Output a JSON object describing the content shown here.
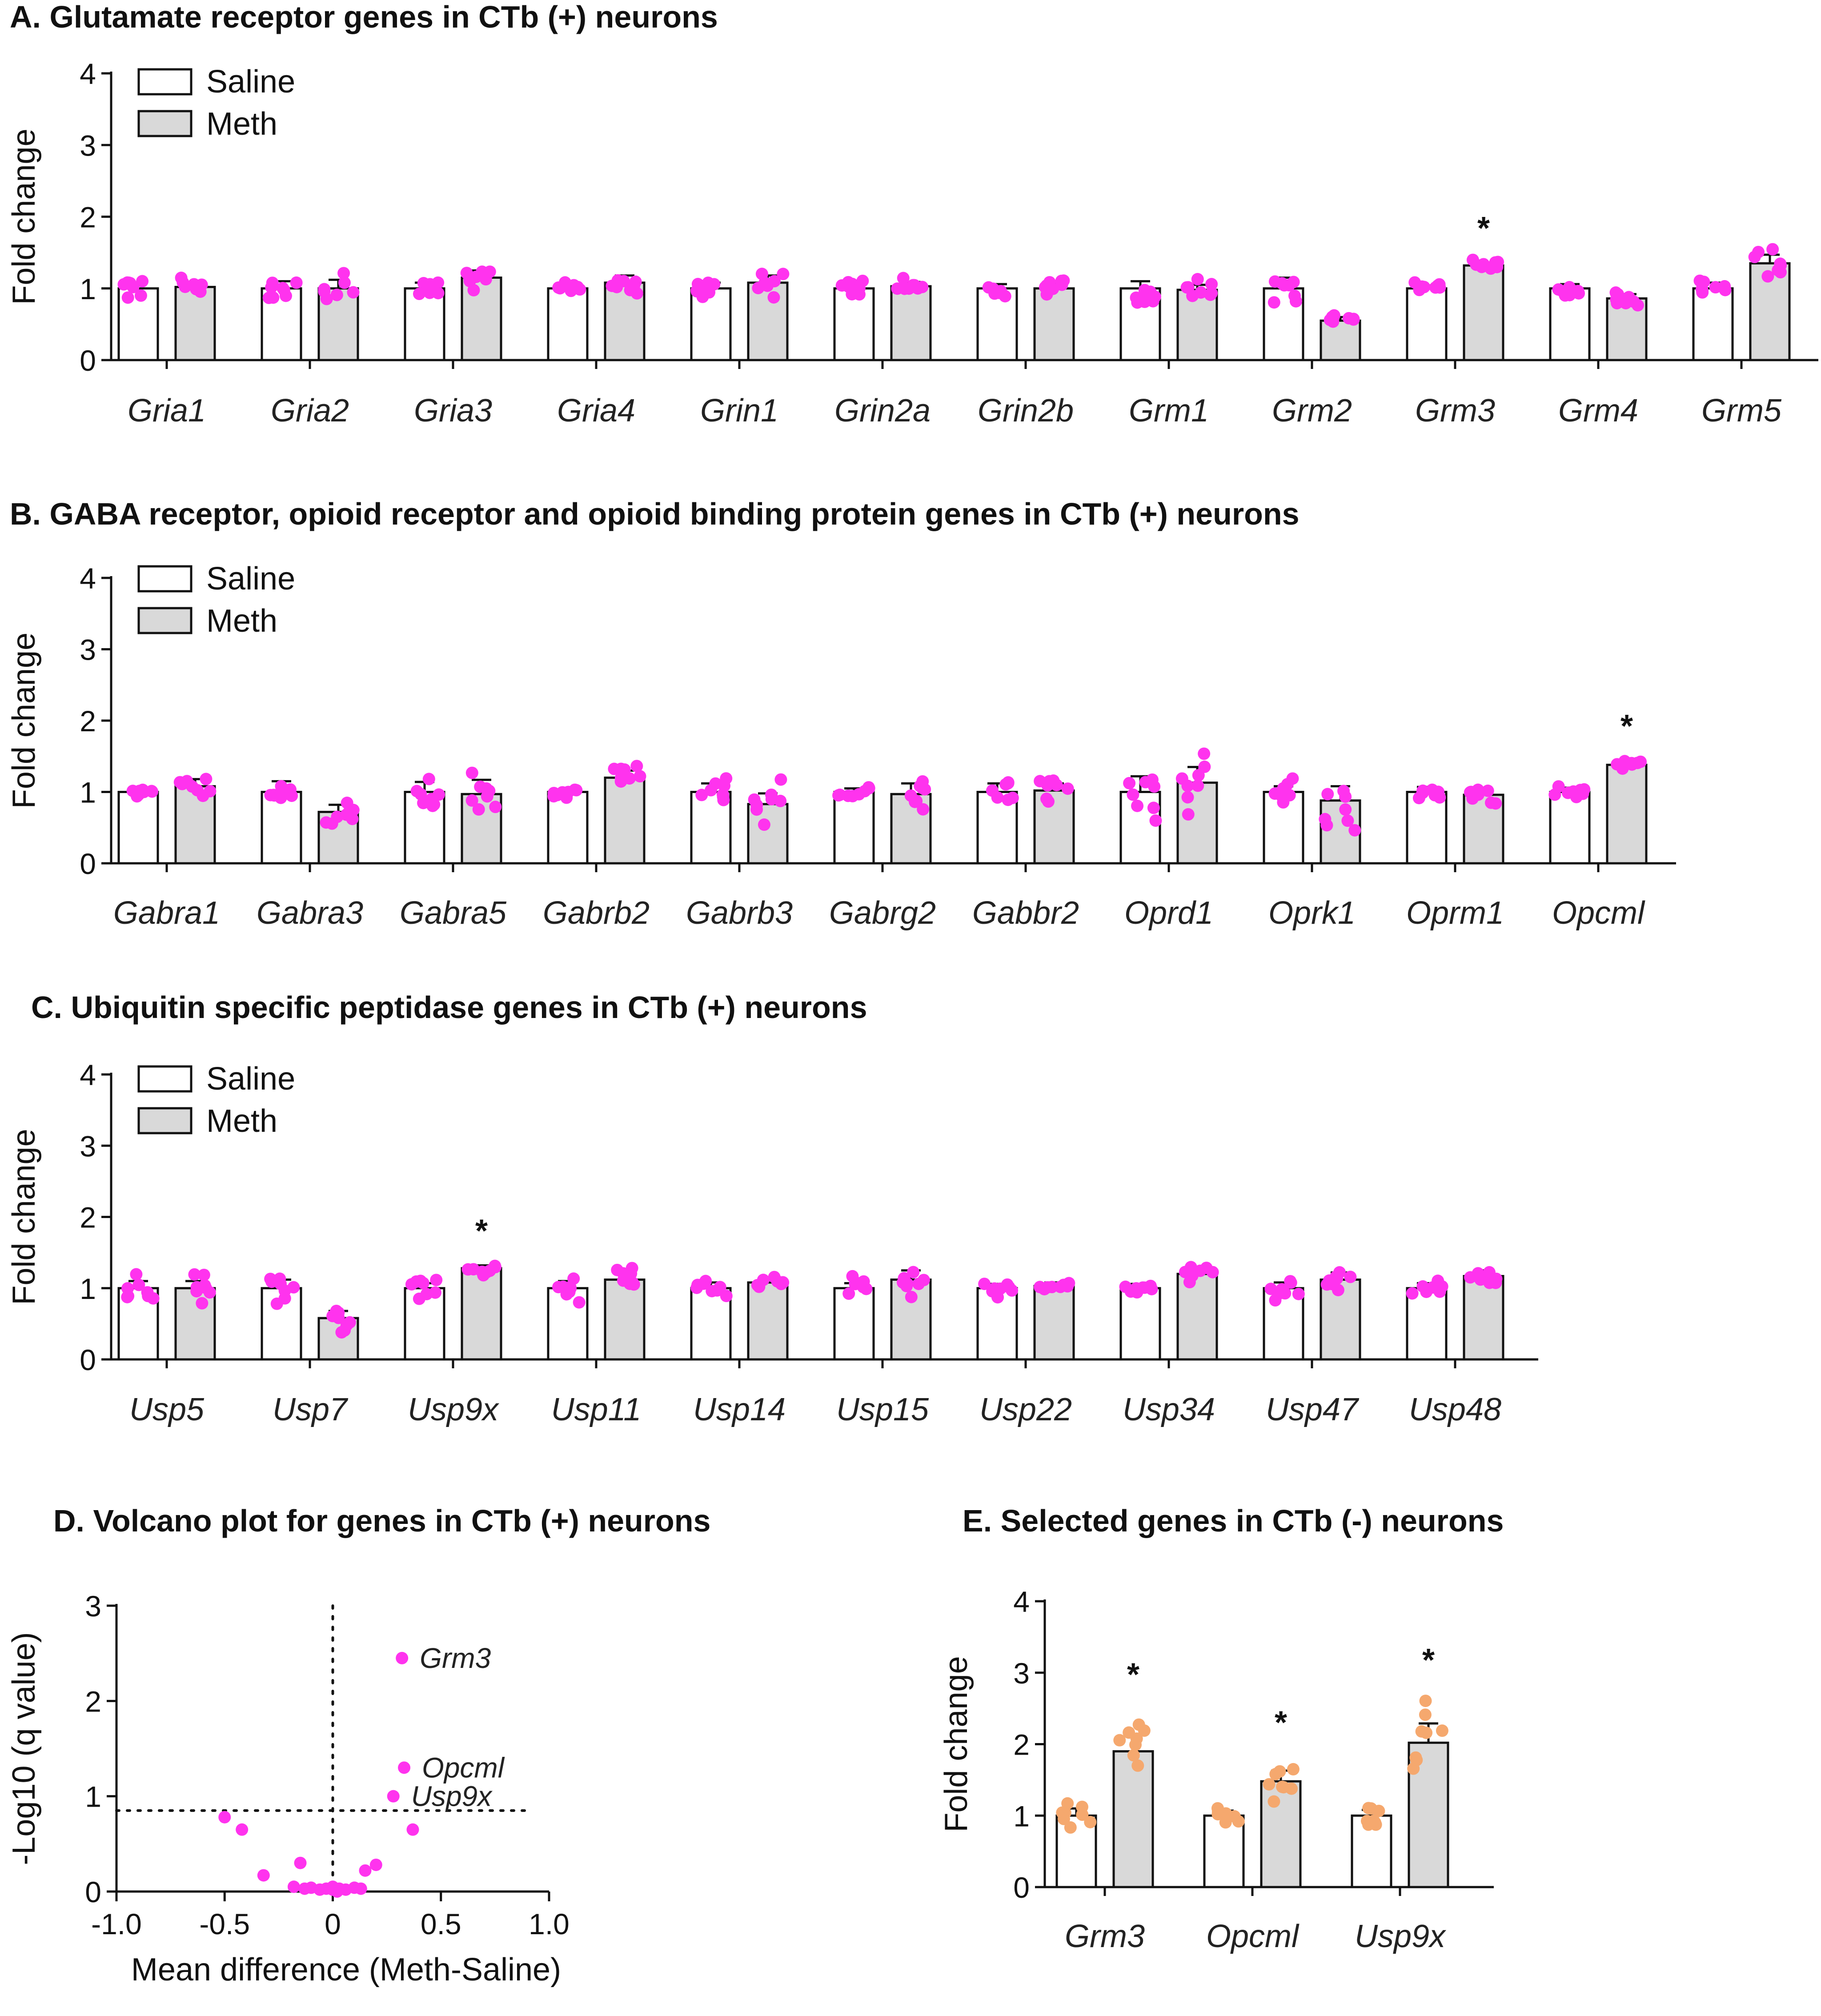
{
  "chart_data": [
    {
      "id": "A",
      "type": "bar",
      "title": "A. Glutamate receptor genes in CTb (+)  neurons",
      "ylabel": "Fold change",
      "ylim": [
        0,
        4
      ],
      "yticks": [
        "0",
        "1",
        "2",
        "3",
        "4"
      ],
      "legend": [
        "Saline",
        "Meth"
      ],
      "dot_color": "#ff33ee",
      "categories": [
        "Gria1",
        "Gria2",
        "Gria3",
        "Gria4",
        "Grin1",
        "Grin2a",
        "Grin2b",
        "Grm1",
        "Grm2",
        "Grm3",
        "Grm4",
        "Grm5"
      ],
      "series": [
        {
          "name": "Saline",
          "values": [
            1.0,
            1.0,
            1.0,
            1.0,
            1.0,
            1.0,
            1.0,
            1.0,
            1.0,
            1.0,
            1.0,
            1.0
          ],
          "sem": [
            0.08,
            0.1,
            0.08,
            0.04,
            0.08,
            0.07,
            0.06,
            0.1,
            0.15,
            0.04,
            0.06,
            0.08
          ]
        },
        {
          "name": "Meth",
          "values": [
            1.02,
            1.0,
            1.15,
            1.08,
            1.08,
            1.03,
            1.0,
            0.98,
            0.55,
            1.32,
            0.86,
            1.35
          ],
          "sem": [
            0.05,
            0.12,
            0.1,
            0.1,
            0.1,
            0.06,
            0.06,
            0.07,
            0.05,
            0.04,
            0.06,
            0.12
          ]
        }
      ],
      "significant": [
        "Grm3"
      ],
      "significance_label": "*"
    },
    {
      "id": "B",
      "type": "bar",
      "title": "B. GABA receptor, opioid receptor and opioid binding protein genes in CTb (+)  neurons",
      "ylabel": "Fold change",
      "ylim": [
        0,
        4
      ],
      "yticks": [
        "0",
        "1",
        "2",
        "3",
        "4"
      ],
      "legend": [
        "Saline",
        "Meth"
      ],
      "dot_color": "#ff33ee",
      "categories": [
        "Gabra1",
        "Gabra3",
        "Gabra5",
        "Gabrb2",
        "Gabrb3",
        "Gabrg2",
        "Gabbr2",
        "Oprd1",
        "Oprk1",
        "Oprm1",
        "Opcml"
      ],
      "series": [
        {
          "name": "Saline",
          "values": [
            1.0,
            1.0,
            1.0,
            1.0,
            1.0,
            1.0,
            1.0,
            1.0,
            1.0,
            1.0,
            1.0
          ],
          "sem": [
            0.04,
            0.15,
            0.14,
            0.03,
            0.12,
            0.05,
            0.12,
            0.22,
            0.08,
            0.07,
            0.06
          ]
        },
        {
          "name": "Meth",
          "values": [
            1.08,
            0.72,
            0.97,
            1.2,
            0.83,
            0.97,
            1.02,
            1.13,
            0.88,
            0.96,
            1.38
          ]
        },
        {
          "name": "Meth_sem",
          "values": [
            0.1,
            0.1,
            0.2,
            0.1,
            0.15,
            0.15,
            0.1,
            0.22,
            0.2,
            0.07,
            0.05
          ]
        }
      ],
      "significant": [
        "Opcml"
      ],
      "significance_label": "*"
    },
    {
      "id": "C",
      "type": "bar",
      "title": "C. Ubiquitin specific peptidase genes in CTb (+) neurons",
      "ylabel": "Fold change",
      "ylim": [
        0,
        4
      ],
      "yticks": [
        "0",
        "1",
        "2",
        "3",
        "4"
      ],
      "legend": [
        "Saline",
        "Meth"
      ],
      "dot_color": "#ff33ee",
      "categories": [
        "Usp5",
        "Usp7",
        "Usp9x",
        "Usp11",
        "Usp14",
        "Usp15",
        "Usp22",
        "Usp34",
        "Usp47",
        "Usp48"
      ],
      "series": [
        {
          "name": "Saline",
          "values": [
            1.0,
            1.0,
            1.0,
            1.0,
            1.0,
            1.0,
            1.0,
            1.0,
            1.0,
            1.0
          ],
          "sem": [
            0.1,
            0.12,
            0.07,
            0.1,
            0.08,
            0.07,
            0.06,
            0.06,
            0.08,
            0.07
          ]
        },
        {
          "name": "Meth",
          "values": [
            1.0,
            0.58,
            1.28,
            1.12,
            1.08,
            1.12,
            1.03,
            1.2,
            1.12,
            1.17
          ],
          "sem": [
            0.1,
            0.1,
            0.04,
            0.1,
            0.05,
            0.13,
            0.05,
            0.1,
            0.1,
            0.08
          ]
        }
      ],
      "significant": [
        "Usp9x"
      ],
      "significance_label": "*"
    },
    {
      "id": "D",
      "type": "scatter",
      "title": "D. Volcano plot for genes in CTb (+) neurons",
      "xlabel": "Mean difference (Meth-Saline)",
      "ylabel": "-Log10 (q value)",
      "xlim": [
        -1.0,
        1.0
      ],
      "ylim": [
        0,
        3
      ],
      "xticks": [
        "-1.0",
        "-0.5",
        "0",
        "0.5",
        "1.0"
      ],
      "yticks": [
        "0",
        "1",
        "2",
        "3"
      ],
      "threshold_y": 0.85,
      "dot_color": "#ff33ee",
      "points": [
        {
          "x": 0.32,
          "y": 2.45,
          "label": "Grm3"
        },
        {
          "x": 0.33,
          "y": 1.3,
          "label": "Opcml"
        },
        {
          "x": 0.28,
          "y": 1.0,
          "label": "Usp9x"
        },
        {
          "x": 0.37,
          "y": 0.65
        },
        {
          "x": -0.5,
          "y": 0.78
        },
        {
          "x": -0.42,
          "y": 0.65
        },
        {
          "x": -0.32,
          "y": 0.17
        },
        {
          "x": -0.15,
          "y": 0.3
        },
        {
          "x": 0.2,
          "y": 0.28
        },
        {
          "x": 0.15,
          "y": 0.22
        },
        {
          "x": -0.18,
          "y": 0.05
        },
        {
          "x": -0.13,
          "y": 0.03
        },
        {
          "x": -0.1,
          "y": 0.04
        },
        {
          "x": -0.06,
          "y": 0.02
        },
        {
          "x": -0.03,
          "y": 0.03
        },
        {
          "x": 0.0,
          "y": 0.02
        },
        {
          "x": 0.03,
          "y": 0.03
        },
        {
          "x": 0.06,
          "y": 0.02
        },
        {
          "x": 0.1,
          "y": 0.04
        },
        {
          "x": 0.13,
          "y": 0.03
        },
        {
          "x": 0.0,
          "y": 0.05
        },
        {
          "x": 0.02,
          "y": 0.0
        }
      ]
    },
    {
      "id": "E",
      "type": "bar",
      "title": "E. Selected genes in CTb (-) neurons",
      "ylabel": "Fold change",
      "ylim": [
        0,
        4
      ],
      "yticks": [
        "0",
        "1",
        "2",
        "3",
        "4"
      ],
      "dot_color": "#f5a86e",
      "categories": [
        "Grm3",
        "Opcml",
        "Usp9x"
      ],
      "series": [
        {
          "name": "Saline",
          "values": [
            1.0,
            1.0,
            1.0
          ],
          "sem": [
            0.1,
            0.07,
            0.08
          ]
        },
        {
          "name": "Meth",
          "values": [
            1.9,
            1.48,
            2.02
          ],
          "sem": [
            0.24,
            0.15,
            0.27
          ]
        }
      ],
      "significant": [
        "Grm3",
        "Opcml",
        "Usp9x"
      ],
      "significance_label": "*"
    }
  ],
  "colors": {
    "saline_fill": "#ffffff",
    "meth_fill": "#d9d9d9",
    "axis": "#111111"
  }
}
